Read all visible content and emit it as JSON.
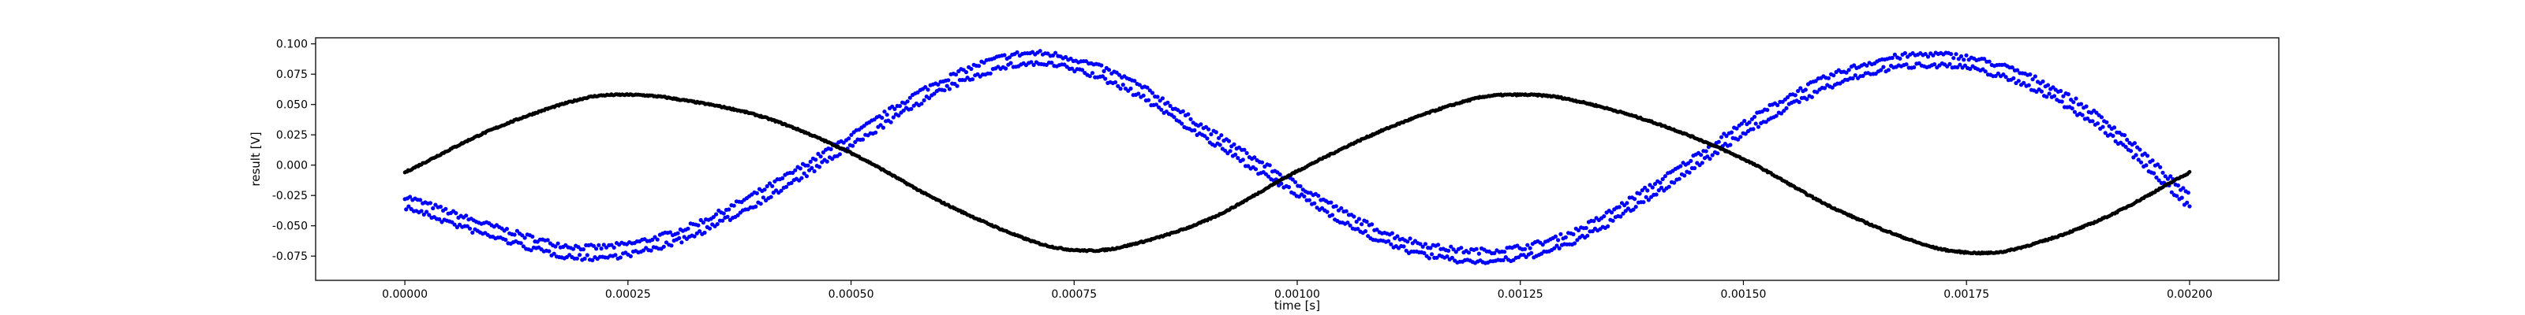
{
  "chart_data": {
    "type": "scatter",
    "title": "",
    "xlabel": "time [s]",
    "ylabel": "result [V]",
    "xlim": [
      -0.0001,
      0.0021
    ],
    "ylim": [
      -0.095,
      0.105
    ],
    "grid": false,
    "legend": "none",
    "xticks": [
      0,
      0.00025,
      0.0005,
      0.00075,
      0.001,
      0.00125,
      0.0015,
      0.00175,
      0.002
    ],
    "xtick_labels": [
      "0.00000",
      "0.00025",
      "0.00050",
      "0.00075",
      "0.00100",
      "0.00125",
      "0.00150",
      "0.00175",
      "0.00200"
    ],
    "yticks": [
      -0.075,
      -0.05,
      -0.025,
      0,
      0.025,
      0.05,
      0.075,
      0.1
    ],
    "ytick_labels": [
      "-0.075",
      "-0.050",
      "-0.025",
      "0.000",
      "0.025",
      "0.050",
      "0.075",
      "0.100"
    ],
    "series": [
      {
        "color": "#000000",
        "x": [
          0,
          0.0001,
          0.0002,
          0.00025,
          0.0003,
          0.0004,
          0.0005,
          0.0006,
          0.0007,
          0.00075,
          0.0008,
          0.0009,
          0.001,
          0.0011,
          0.0012,
          0.00125,
          0.0013,
          0.0014,
          0.0015,
          0.0016,
          0.0017,
          0.00175,
          0.0018,
          0.0019,
          0.002
        ],
        "y": [
          -0.006,
          0.03,
          0.055,
          0.058,
          0.055,
          0.04,
          0.01,
          -0.03,
          -0.062,
          -0.07,
          -0.068,
          -0.045,
          -0.005,
          0.03,
          0.055,
          0.058,
          0.055,
          0.035,
          0.005,
          -0.035,
          -0.065,
          -0.072,
          -0.07,
          -0.045,
          -0.006
        ]
      },
      {
        "color": "#0000ff",
        "x": [
          0,
          0.0001,
          0.0002,
          0.0003,
          0.0004,
          0.0005,
          0.0006,
          0.0007,
          0.0008,
          0.0009,
          0.001,
          0.0011,
          0.0012,
          0.0013,
          0.0014,
          0.0015,
          0.0016,
          0.0017,
          0.0018,
          0.0019,
          0.002
        ],
        "y": [
          -0.03,
          -0.055,
          -0.072,
          -0.06,
          -0.025,
          0.02,
          0.065,
          0.088,
          0.07,
          0.025,
          -0.02,
          -0.06,
          -0.075,
          -0.062,
          -0.02,
          0.03,
          0.07,
          0.087,
          0.075,
          0.035,
          -0.03
        ]
      }
    ]
  }
}
